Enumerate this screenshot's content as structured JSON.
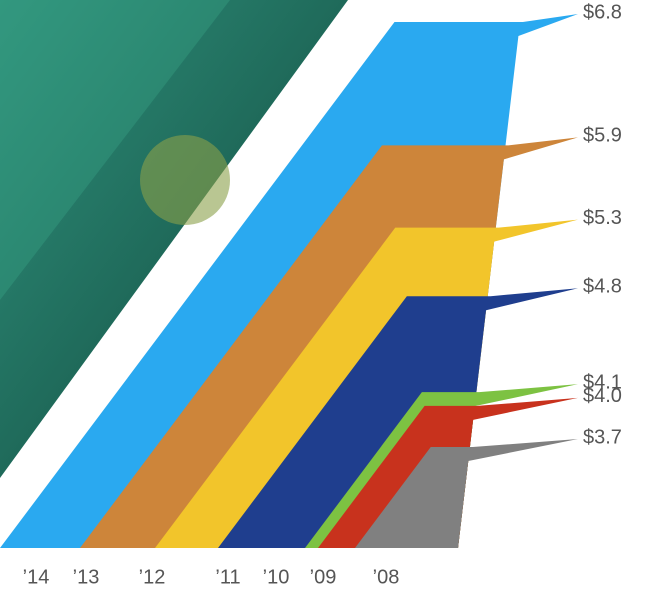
{
  "chart_data": {
    "type": "bar",
    "categories": [
      "’14",
      "’13",
      "’12",
      "’11",
      "’10",
      "’09",
      "’08"
    ],
    "series": [
      {
        "values": [
          6.8,
          5.9,
          5.3,
          4.8,
          4.1,
          4.0,
          3.7
        ],
        "value_labels": [
          "$6.8",
          "$5.9",
          "$5.3",
          "$4.8",
          "$4.1",
          "$4.0",
          "$3.7"
        ],
        "colors": [
          "#2aa9f0",
          "#cd853a",
          "#f2c52b",
          "#1f3e8e",
          "#7dc242",
          "#c8321d",
          "#808080"
        ]
      }
    ]
  }
}
